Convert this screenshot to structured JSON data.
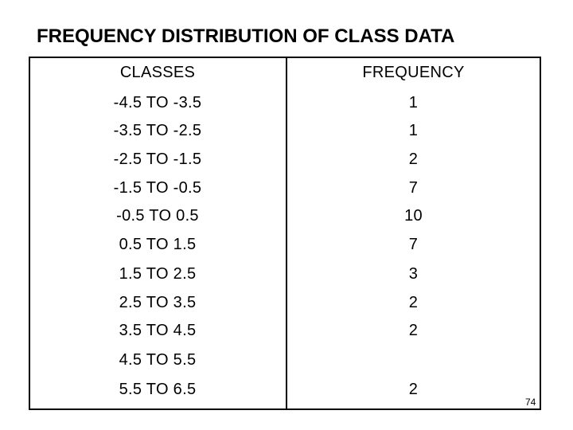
{
  "title": "FREQUENCY DISTRIBUTION OF CLASS DATA",
  "table": {
    "headers": {
      "classes": "CLASSES",
      "frequency": "FREQUENCY"
    },
    "rows": [
      {
        "class": "-4.5 TO -3.5",
        "frequency": "1"
      },
      {
        "class": "-3.5 TO -2.5",
        "frequency": "1"
      },
      {
        "class": "-2.5 TO -1.5",
        "frequency": "2"
      },
      {
        "class": "-1.5 TO -0.5",
        "frequency": "7"
      },
      {
        "class": "-0.5 TO 0.5",
        "frequency": "10"
      },
      {
        "class": "0.5 TO 1.5",
        "frequency": "7"
      },
      {
        "class": "1.5 TO 2.5",
        "frequency": "3"
      },
      {
        "class": "2.5 TO 3.5",
        "frequency": "2"
      },
      {
        "class": "3.5 TO 4.5",
        "frequency": "2"
      },
      {
        "class": "4.5 TO 5.5",
        "frequency": ""
      },
      {
        "class": "5.5 TO 6.5",
        "frequency": "2"
      }
    ]
  },
  "page_number": "74"
}
